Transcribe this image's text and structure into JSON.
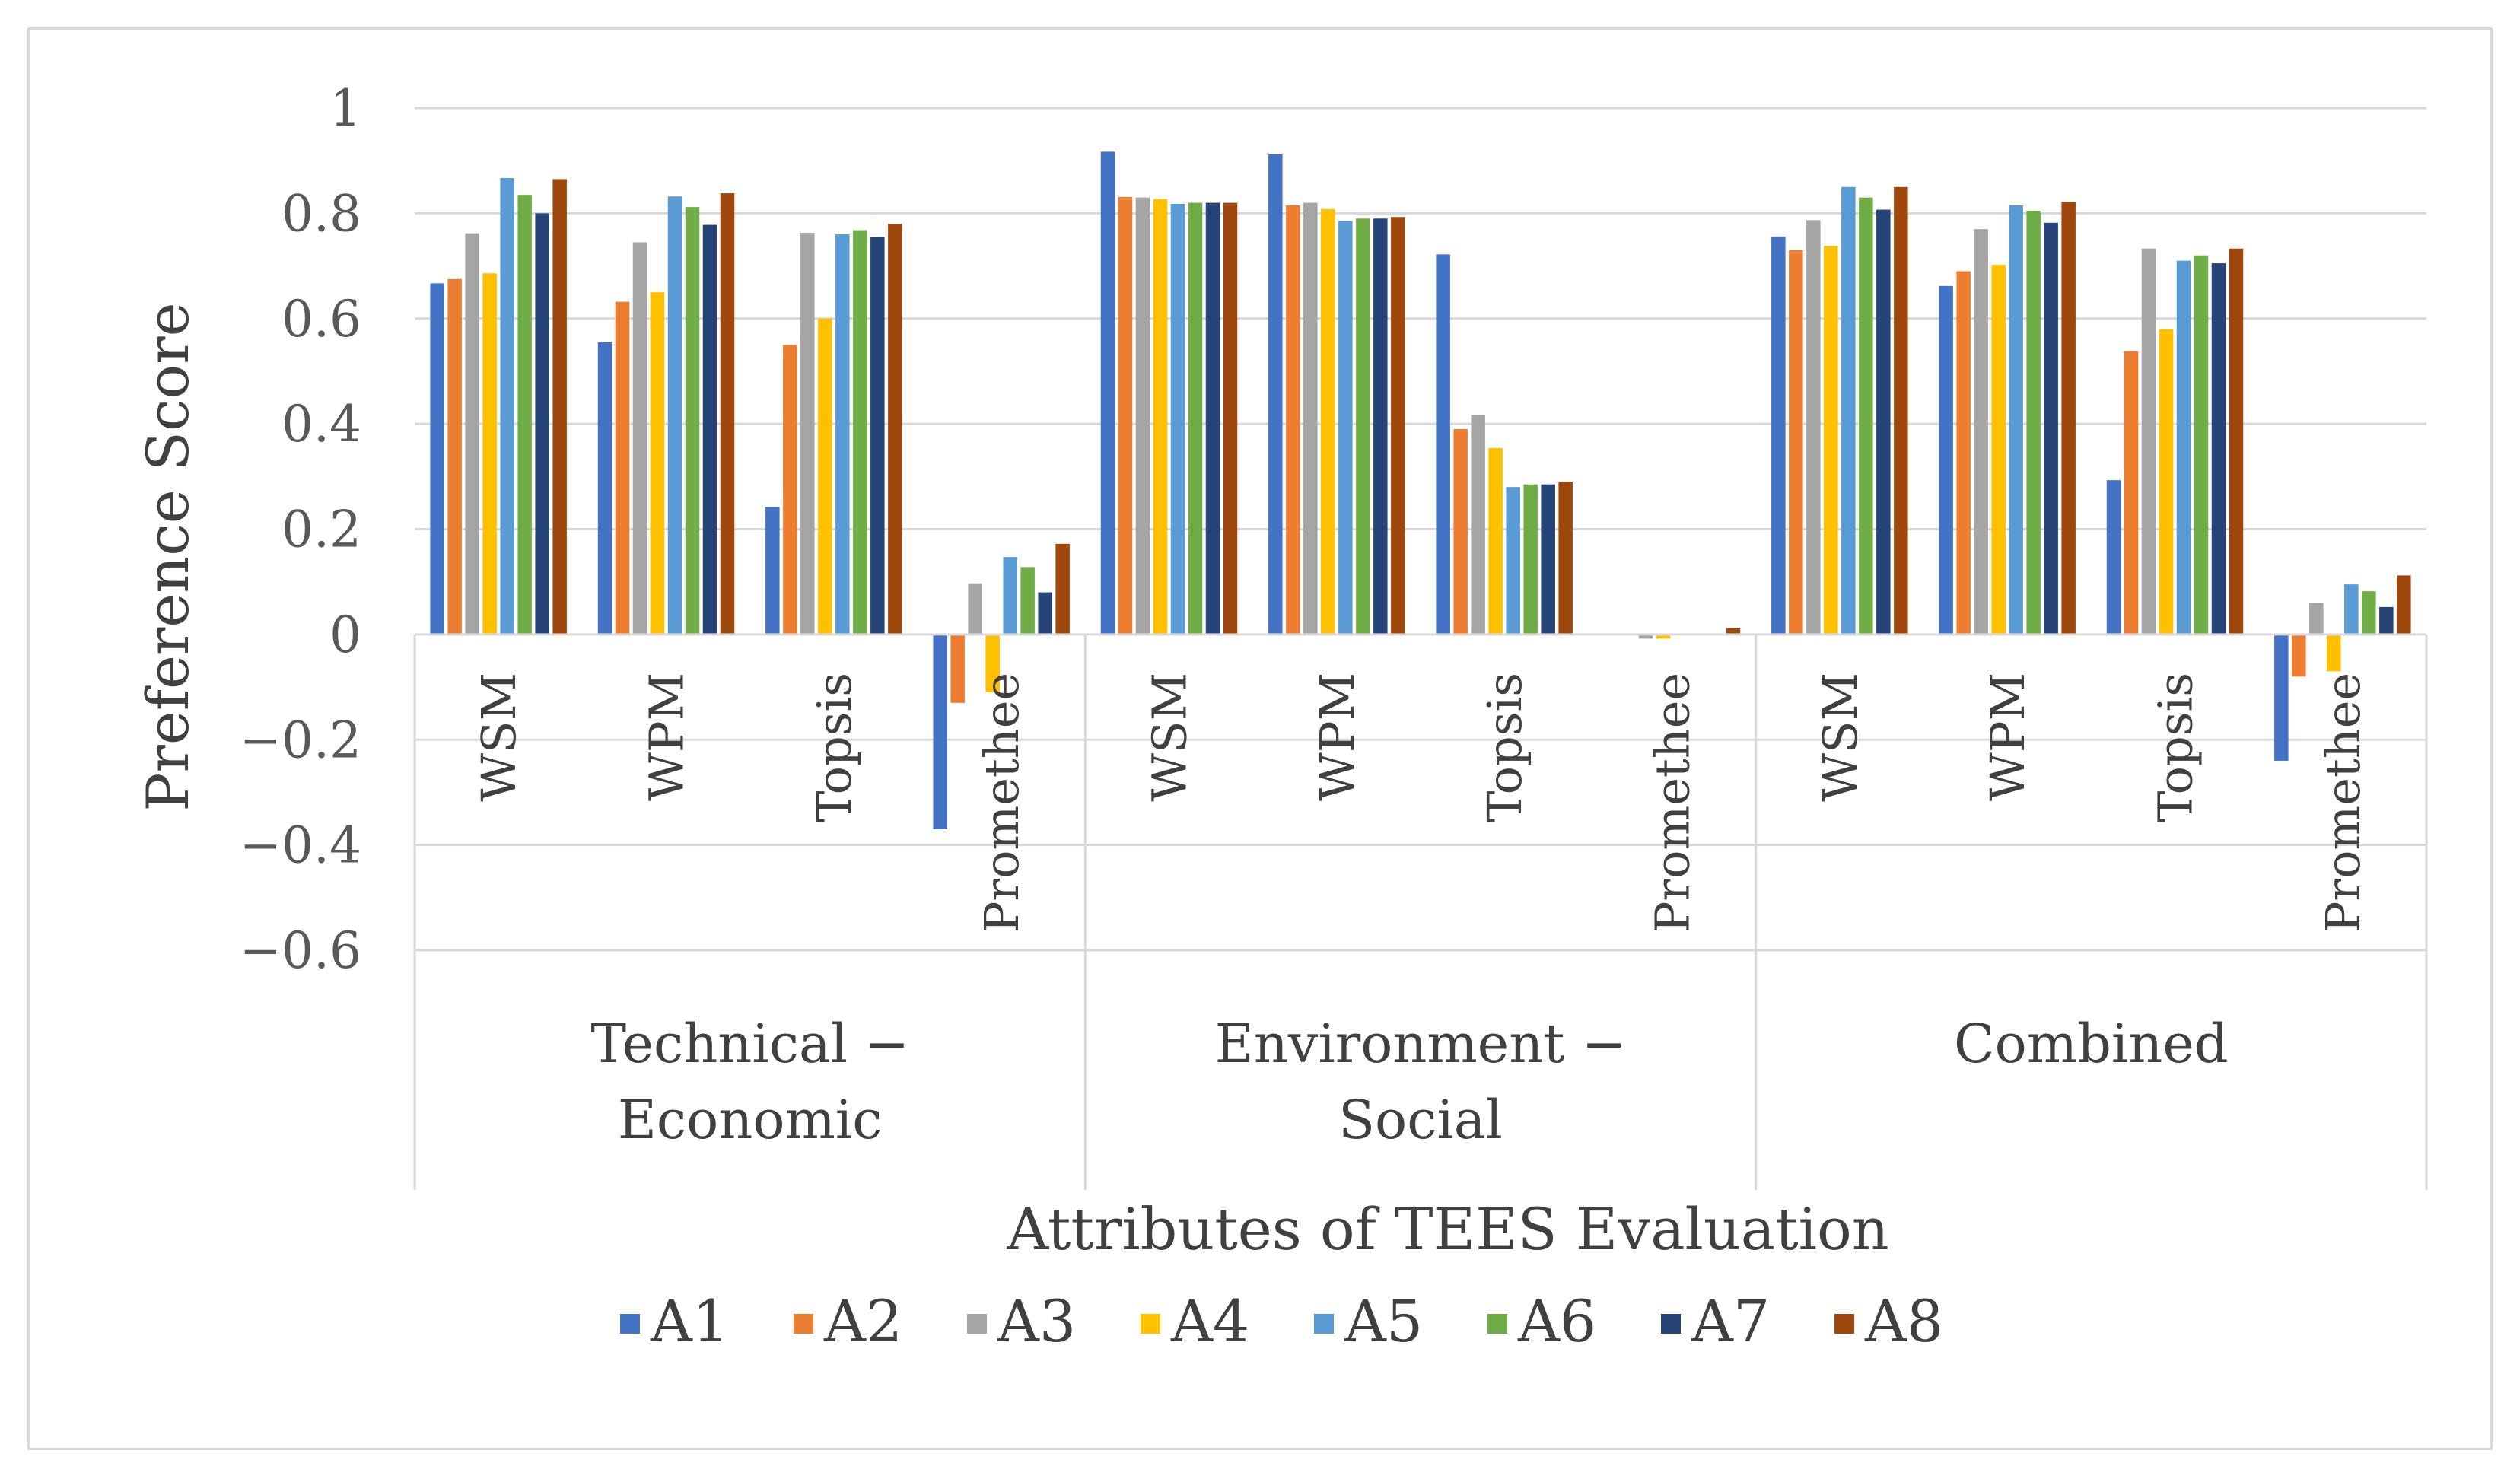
{
  "chart_data": {
    "type": "bar",
    "title": "",
    "ylabel": "Preference Score",
    "xlabel": "Attributes of TEES Evaluation",
    "ylim": [
      -0.6,
      1
    ],
    "yticks": [
      1,
      0.8,
      0.6,
      0.4,
      0.2,
      0,
      -0.2,
      -0.4,
      -0.6
    ],
    "ytick_labels": [
      "1",
      "0.8",
      "0.6",
      "0.4",
      "0.2",
      "0",
      "−0.2",
      "−0.4",
      "−0.6"
    ],
    "grid": true,
    "legend_position": "bottom",
    "groups": [
      {
        "label_lines": [
          "Technical −",
          "Economic"
        ],
        "methods": [
          "WSM",
          "WPM",
          "Topsis",
          "Promethee"
        ]
      },
      {
        "label_lines": [
          "Environment −",
          "Social"
        ],
        "methods": [
          "WSM",
          "WPM",
          "Topsis",
          "Promethee"
        ]
      },
      {
        "label_lines": [
          "Combined"
        ],
        "methods": [
          "WSM",
          "WPM",
          "Topsis",
          "Promethee"
        ]
      }
    ],
    "series": [
      {
        "name": "A1",
        "color": "#4472C4",
        "values": [
          0.667,
          0.555,
          0.242,
          -0.37,
          0.917,
          0.912,
          0.722,
          0.0,
          0.756,
          0.662,
          0.293,
          -0.24
        ]
      },
      {
        "name": "A2",
        "color": "#ED7D31",
        "values": [
          0.675,
          0.632,
          0.55,
          -0.13,
          0.831,
          0.815,
          0.39,
          0.0,
          0.73,
          0.69,
          0.538,
          -0.08
        ]
      },
      {
        "name": "A3",
        "color": "#A5A5A5",
        "values": [
          0.762,
          0.745,
          0.763,
          0.097,
          0.83,
          0.82,
          0.417,
          -0.008,
          0.787,
          0.77,
          0.733,
          0.06
        ]
      },
      {
        "name": "A4",
        "color": "#FFC000",
        "values": [
          0.686,
          0.65,
          0.6,
          -0.11,
          0.827,
          0.808,
          0.354,
          -0.008,
          0.738,
          0.702,
          0.58,
          -0.07
        ]
      },
      {
        "name": "A5",
        "color": "#5B9BD5",
        "values": [
          0.867,
          0.832,
          0.76,
          0.147,
          0.818,
          0.785,
          0.28,
          0.0,
          0.85,
          0.815,
          0.71,
          0.095
        ]
      },
      {
        "name": "A6",
        "color": "#70AD47",
        "values": [
          0.835,
          0.812,
          0.768,
          0.128,
          0.82,
          0.79,
          0.285,
          0.0,
          0.83,
          0.805,
          0.72,
          0.082
        ]
      },
      {
        "name": "A7",
        "color": "#264478",
        "values": [
          0.8,
          0.778,
          0.755,
          0.08,
          0.82,
          0.79,
          0.285,
          0.0,
          0.807,
          0.782,
          0.705,
          0.052
        ]
      },
      {
        "name": "A8",
        "color": "#9E480E",
        "values": [
          0.865,
          0.838,
          0.78,
          0.172,
          0.82,
          0.793,
          0.29,
          0.012,
          0.85,
          0.822,
          0.733,
          0.112
        ]
      }
    ]
  }
}
